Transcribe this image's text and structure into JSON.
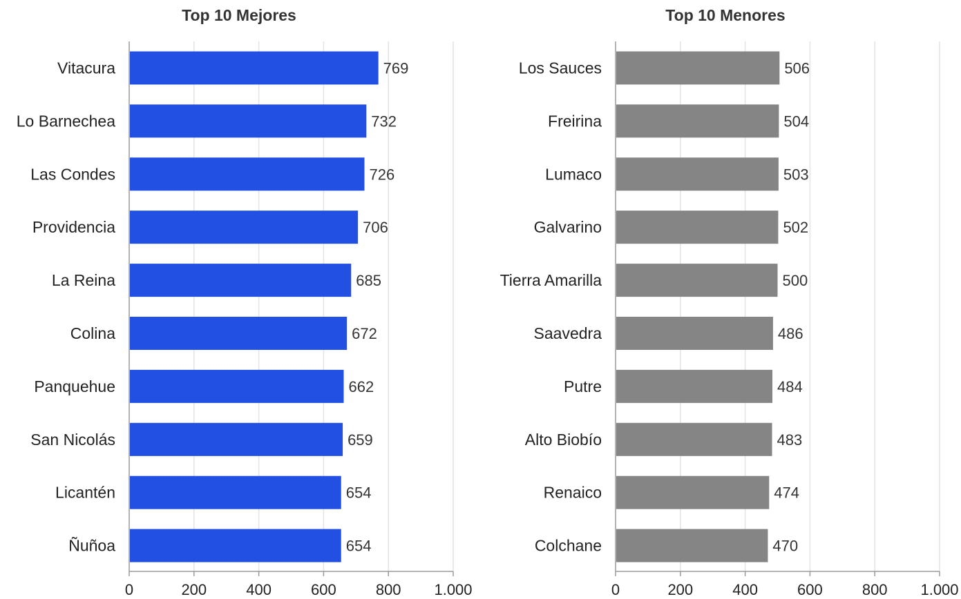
{
  "chart_data": [
    {
      "type": "bar",
      "orientation": "horizontal",
      "title": "Top 10 Mejores",
      "categories": [
        "Vitacura",
        "Lo Barnechea",
        "Las Condes",
        "Providencia",
        "La Reina",
        "Colina",
        "Panquehue",
        "San Nicolás",
        "Licantén",
        "Ñuñoa"
      ],
      "values": [
        769,
        732,
        726,
        706,
        685,
        672,
        662,
        659,
        654,
        654
      ],
      "value_labels": [
        "769",
        "732",
        "726",
        "706",
        "685",
        "672",
        "662",
        "659",
        "654",
        "654"
      ],
      "xlim": [
        0,
        1000
      ],
      "xticks": [
        0,
        200,
        400,
        600,
        800,
        1000
      ],
      "xtick_labels": [
        "0",
        "200",
        "400",
        "600",
        "800",
        "1.000"
      ],
      "color": "#2150e3",
      "grid": true
    },
    {
      "type": "bar",
      "orientation": "horizontal",
      "title": "Top 10 Menores",
      "categories": [
        "Los Sauces",
        "Freirina",
        "Lumaco",
        "Galvarino",
        "Tierra Amarilla",
        "Saavedra",
        "Putre",
        "Alto Biobío",
        "Renaico",
        "Colchane"
      ],
      "values": [
        506,
        504,
        503,
        502,
        500,
        486,
        484,
        483,
        474,
        470
      ],
      "value_labels": [
        "506",
        "504",
        "503",
        "502",
        "500",
        "486",
        "484",
        "483",
        "474",
        "470"
      ],
      "xlim": [
        0,
        1000
      ],
      "xticks": [
        0,
        200,
        400,
        600,
        800,
        1000
      ],
      "xtick_labels": [
        "0",
        "200",
        "400",
        "600",
        "800",
        "1.000"
      ],
      "color": "#858585",
      "grid": true
    }
  ]
}
